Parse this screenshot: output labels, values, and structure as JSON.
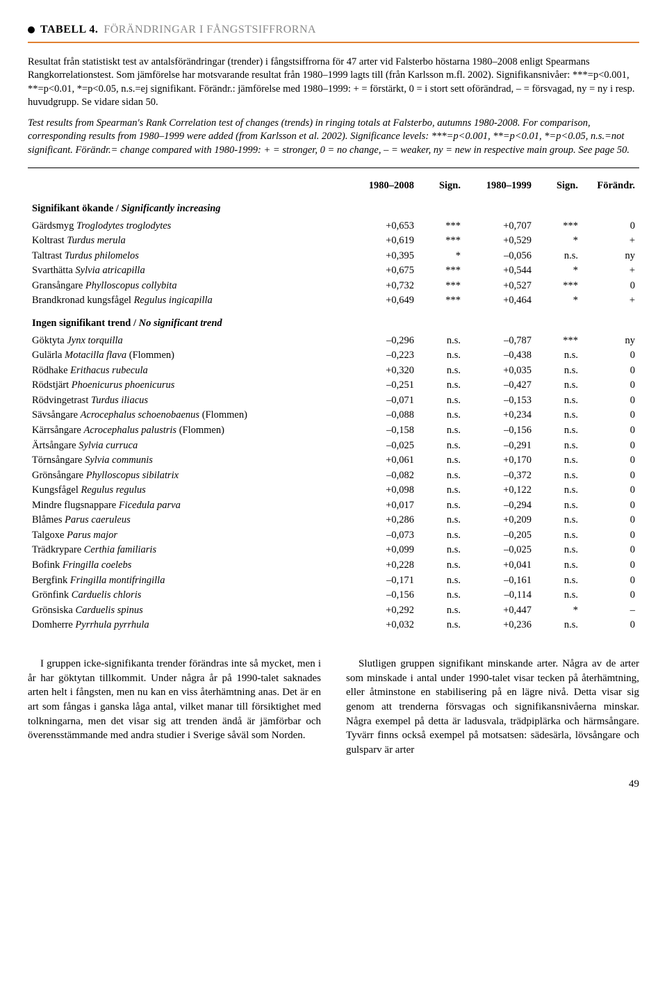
{
  "heading": {
    "label": "TABELL 4.",
    "subtitle": "FÖRÄNDRINGAR I FÅNGSTSIFFRORNA"
  },
  "caption_sv": "Resultat från statistiskt test av antalsförändringar (trender) i fångstsiffrorna för 47 arter vid Falsterbo höstarna 1980–2008 enligt Spearmans Rangkorrelationstest. Som jämförelse har motsvarande resultat från 1980–1999 lagts till (från Karlsson m.fl. 2002). Signifikansnivåer: ***=p<0.001, **=p<0.01, *=p<0.05, n.s.=ej signifikant. Förändr.: jämförelse med 1980–1999: + = förstärkt, 0 = i stort sett oförändrad, – = försvagad, ny = ny i resp. huvudgrupp. Se vidare sidan 50.",
  "caption_en": "Test results from Spearman's Rank Correlation test of changes (trends) in ringing totals at Falsterbo, autumns 1980-2008. For comparison, corresponding results from 1980–1999 were added (from Karlsson et al. 2002). Significance levels: ***=p<0.001, **=p<0.01, *=p<0.05, n.s.=not significant. Förändr.= change compared with 1980-1999: + = stronger, 0 = no change, – = weaker, ny = new in respective main group. See page 50.",
  "columns": [
    "",
    "1980–2008",
    "Sign.",
    "1980–1999",
    "Sign.",
    "Förändr."
  ],
  "sections": [
    {
      "title_sv": "Signifikant ökande",
      "title_en": "Significantly increasing",
      "rows": [
        {
          "sv": "Gärdsmyg",
          "la": "Troglodytes troglodytes",
          "v1": "+0,653",
          "s1": "***",
          "v2": "+0,707",
          "s2": "***",
          "f": "0"
        },
        {
          "sv": "Koltrast",
          "la": "Turdus merula",
          "v1": "+0,619",
          "s1": "***",
          "v2": "+0,529",
          "s2": "*",
          "f": "+"
        },
        {
          "sv": "Taltrast",
          "la": "Turdus philomelos",
          "v1": "+0,395",
          "s1": "*",
          "v2": "–0,056",
          "s2": "n.s.",
          "f": "ny"
        },
        {
          "sv": "Svarthätta",
          "la": "Sylvia atricapilla",
          "v1": "+0,675",
          "s1": "***",
          "v2": "+0,544",
          "s2": "*",
          "f": "+"
        },
        {
          "sv": "Gransångare",
          "la": "Phylloscopus collybita",
          "v1": "+0,732",
          "s1": "***",
          "v2": "+0,527",
          "s2": "***",
          "f": "0"
        },
        {
          "sv": "Brandkronad kungsfågel",
          "la": "Regulus ingicapilla",
          "v1": "+0,649",
          "s1": "***",
          "v2": "+0,464",
          "s2": "*",
          "f": "+"
        }
      ]
    },
    {
      "title_sv": "Ingen signifikant trend",
      "title_en": "No significant trend",
      "rows": [
        {
          "sv": "Göktyta",
          "la": "Jynx torquilla",
          "v1": "–0,296",
          "s1": "n.s.",
          "v2": "–0,787",
          "s2": "***",
          "f": "ny"
        },
        {
          "sv": "Gulärla",
          "la": "Motacilla flava",
          "note": "(Flommen)",
          "v1": "–0,223",
          "s1": "n.s.",
          "v2": "–0,438",
          "s2": "n.s.",
          "f": "0"
        },
        {
          "sv": "Rödhake",
          "la": "Erithacus rubecula",
          "v1": "+0,320",
          "s1": "n.s.",
          "v2": "+0,035",
          "s2": "n.s.",
          "f": "0"
        },
        {
          "sv": "Rödstjärt",
          "la": "Phoenicurus phoenicurus",
          "v1": "–0,251",
          "s1": "n.s.",
          "v2": "–0,427",
          "s2": "n.s.",
          "f": "0"
        },
        {
          "sv": "Rödvingetrast",
          "la": "Turdus iliacus",
          "v1": "–0,071",
          "s1": "n.s.",
          "v2": "–0,153",
          "s2": "n.s.",
          "f": "0"
        },
        {
          "sv": "Sävsångare",
          "la": "Acrocephalus schoenobaenus",
          "note": "(Flommen)",
          "v1": "–0,088",
          "s1": "n.s.",
          "v2": "+0,234",
          "s2": "n.s.",
          "f": "0"
        },
        {
          "sv": "Kärrsångare",
          "la": "Acrocephalus palustris",
          "note": "(Flommen)",
          "v1": "–0,158",
          "s1": "n.s.",
          "v2": "–0,156",
          "s2": "n.s.",
          "f": "0"
        },
        {
          "sv": "Ärtsångare",
          "la": "Sylvia curruca",
          "v1": "–0,025",
          "s1": "n.s.",
          "v2": "–0,291",
          "s2": "n.s.",
          "f": "0"
        },
        {
          "sv": "Törnsångare",
          "la": "Sylvia communis",
          "v1": "+0,061",
          "s1": "n.s.",
          "v2": "+0,170",
          "s2": "n.s.",
          "f": "0"
        },
        {
          "sv": "Grönsångare",
          "la": "Phylloscopus sibilatrix",
          "v1": "–0,082",
          "s1": "n.s.",
          "v2": "–0,372",
          "s2": "n.s.",
          "f": "0"
        },
        {
          "sv": "Kungsfågel",
          "la": "Regulus regulus",
          "v1": "+0,098",
          "s1": "n.s.",
          "v2": "+0,122",
          "s2": "n.s.",
          "f": "0"
        },
        {
          "sv": "Mindre flugsnappare",
          "la": "Ficedula parva",
          "v1": "+0,017",
          "s1": "n.s.",
          "v2": "–0,294",
          "s2": "n.s.",
          "f": "0"
        },
        {
          "sv": "Blåmes",
          "la": "Parus caeruleus",
          "v1": "+0,286",
          "s1": "n.s.",
          "v2": "+0,209",
          "s2": "n.s.",
          "f": "0"
        },
        {
          "sv": "Talgoxe",
          "la": "Parus major",
          "v1": "–0,073",
          "s1": "n.s.",
          "v2": "–0,205",
          "s2": "n.s.",
          "f": "0"
        },
        {
          "sv": "Trädkrypare",
          "la": "Certhia familiaris",
          "v1": "+0,099",
          "s1": "n.s.",
          "v2": "–0,025",
          "s2": "n.s.",
          "f": "0"
        },
        {
          "sv": "Bofink",
          "la": "Fringilla coelebs",
          "v1": "+0,228",
          "s1": "n.s.",
          "v2": "+0,041",
          "s2": "n.s.",
          "f": "0"
        },
        {
          "sv": "Bergfink",
          "la": "Fringilla montifringilla",
          "v1": "–0,171",
          "s1": "n.s.",
          "v2": "–0,161",
          "s2": "n.s.",
          "f": "0"
        },
        {
          "sv": "Grönfink",
          "la": "Carduelis chloris",
          "v1": "–0,156",
          "s1": "n.s.",
          "v2": "–0,114",
          "s2": "n.s.",
          "f": "0"
        },
        {
          "sv": "Grönsiska",
          "la": "Carduelis spinus",
          "v1": "+0,292",
          "s1": "n.s.",
          "v2": "+0,447",
          "s2": "*",
          "f": "–"
        },
        {
          "sv": "Domherre",
          "la": "Pyrrhula pyrrhula",
          "v1": "+0,032",
          "s1": "n.s.",
          "v2": "+0,236",
          "s2": "n.s.",
          "f": "0"
        }
      ]
    }
  ],
  "bottom_left": "I gruppen icke-signifikanta trender förändras inte så mycket, men i år har göktytan tillkommit. Under några år på 1990-talet saknades arten helt i fångsten, men nu kan en viss återhämtning anas. Det är en art som fångas i ganska låga antal, vilket manar till försiktighet med tolkningarna, men det visar sig att trenden ändå är jämförbar och överensstämmande med andra studier i Sverige såväl som Norden.",
  "bottom_right": "Slutligen gruppen signifikant minskande arter. Några av de arter som minskade i antal under 1990-talet visar tecken på återhämtning, eller åtminstone en stabilisering på en lägre nivå. Detta visar sig genom att trenderna försvagas och signifikansnivåerna minskar. Några exempel på detta är ladusvala, trädpiplärka och härmsångare. Tyvärr finns också exempel på motsatsen: sädesärla, lövsångare och gulsparv är arter",
  "pagenum": "49"
}
